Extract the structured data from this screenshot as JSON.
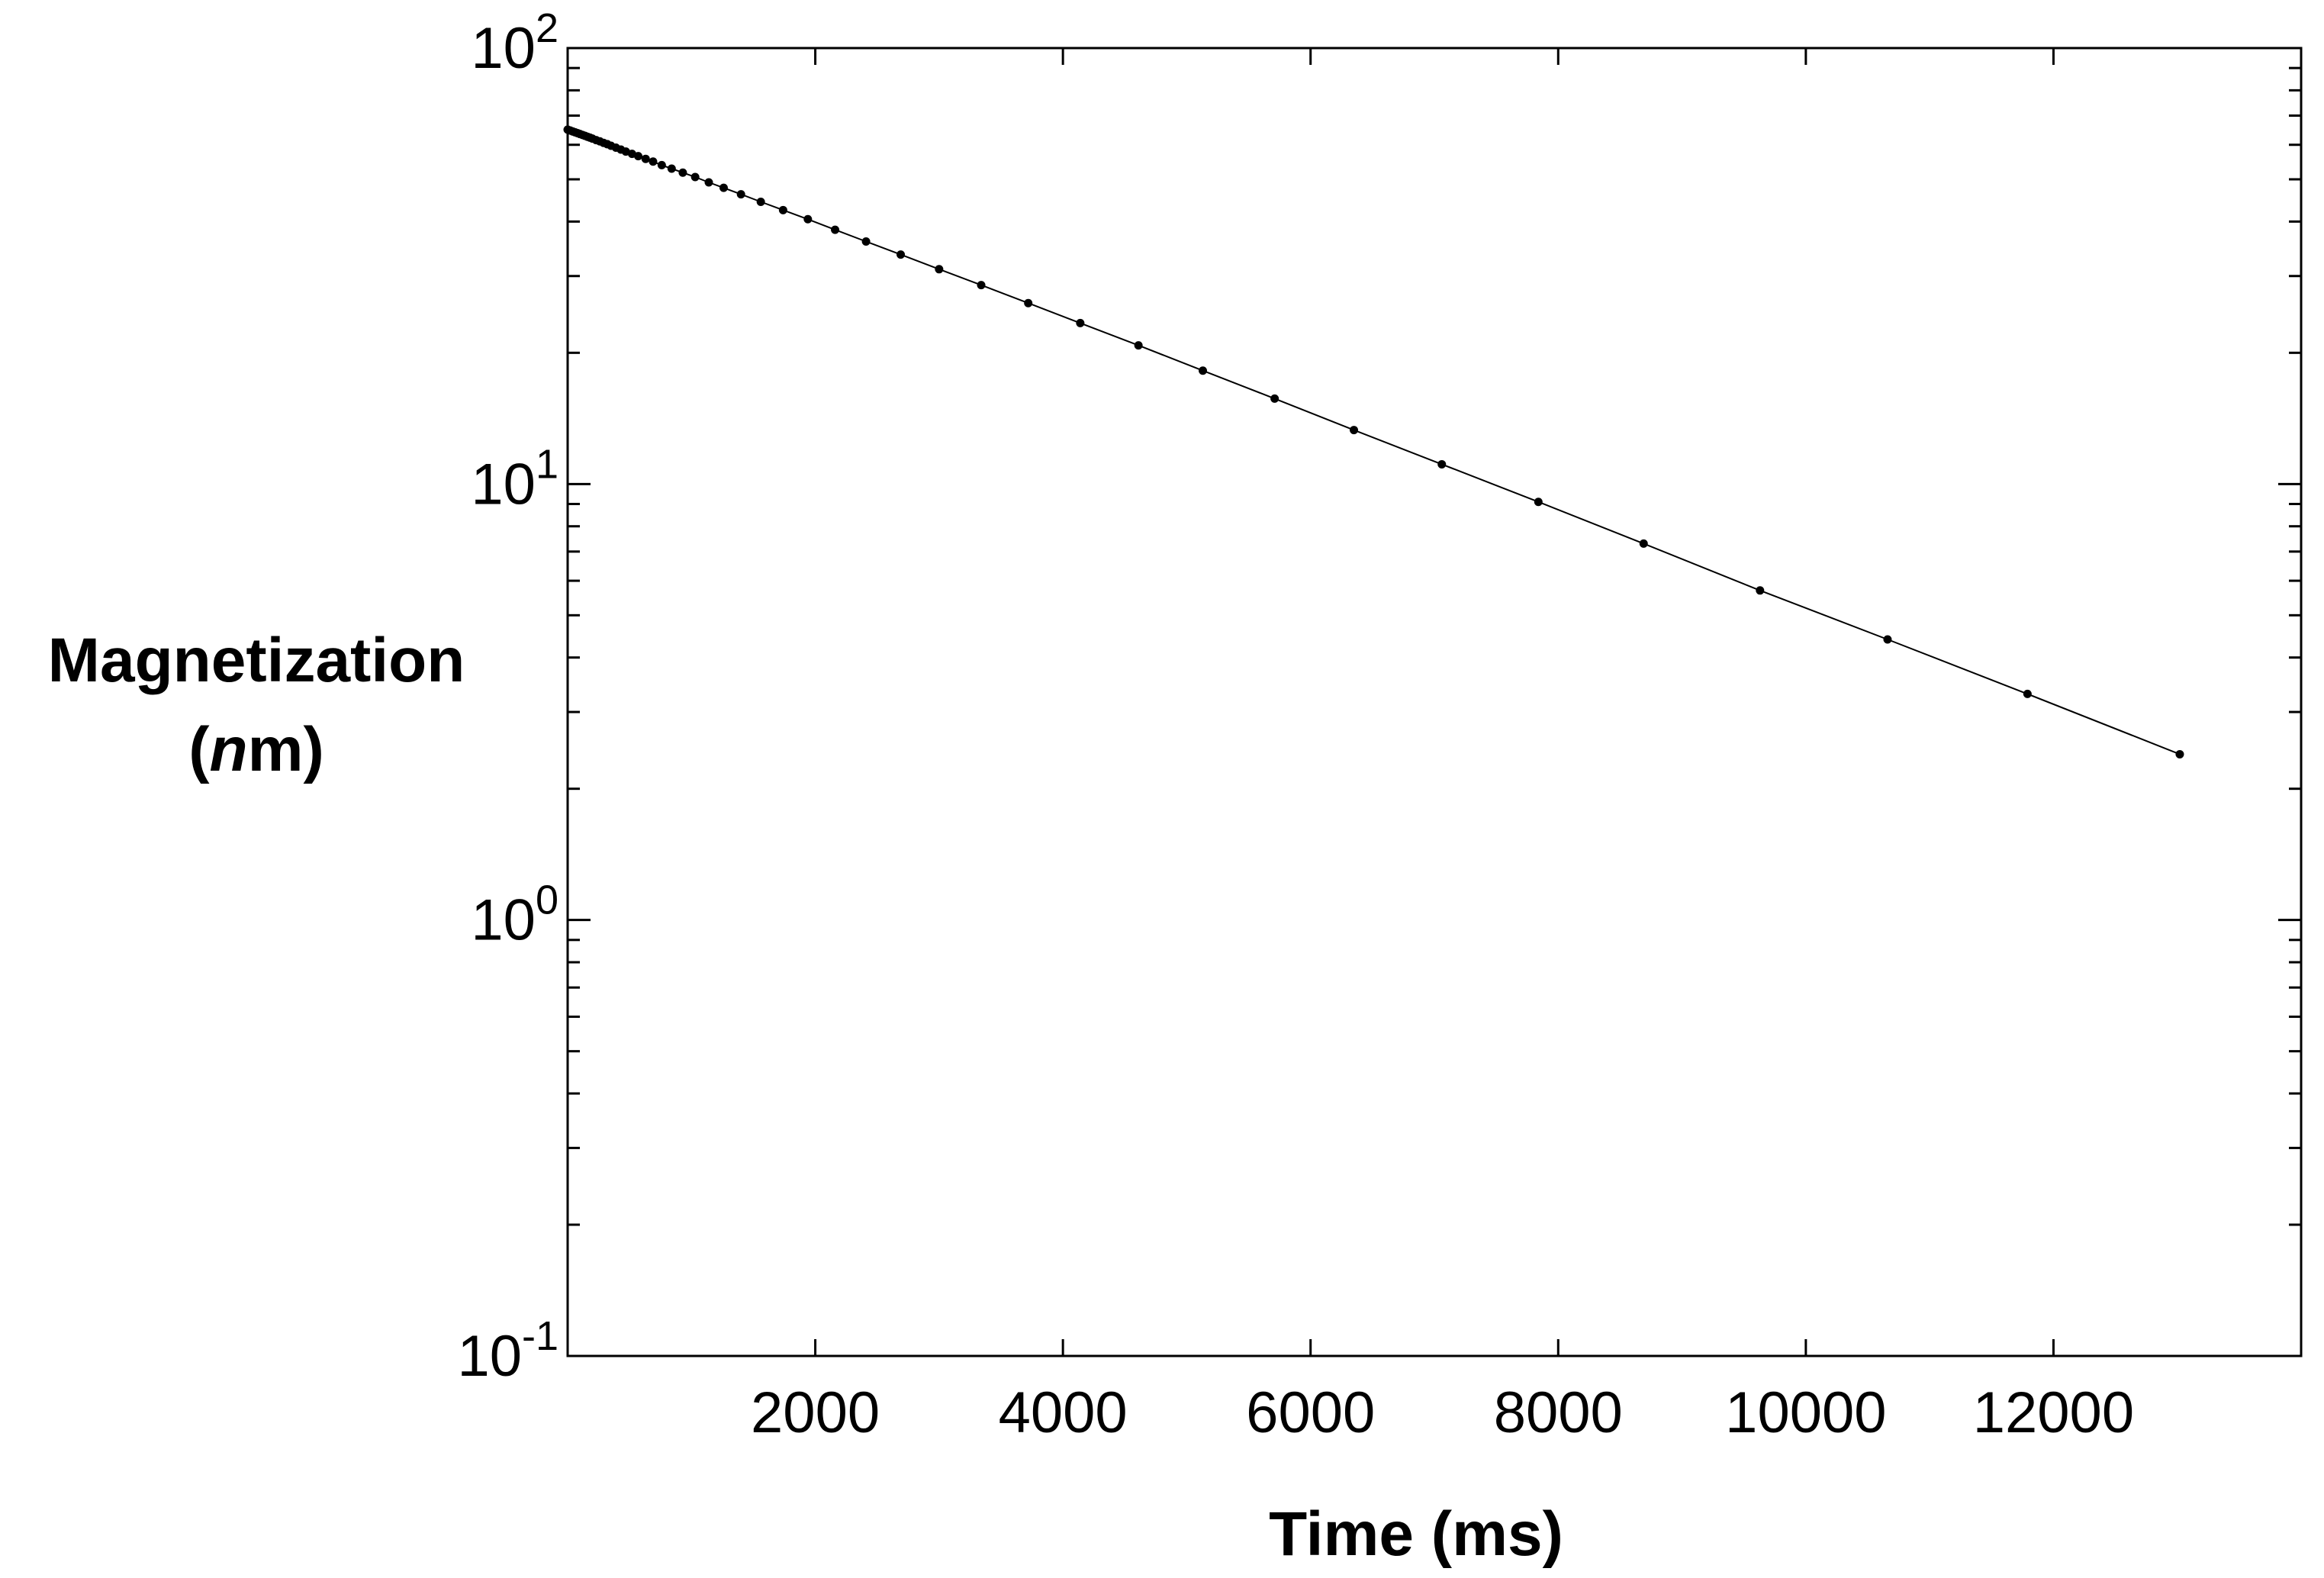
{
  "chart_data": {
    "type": "scatter",
    "xlabel": "Time (ms)",
    "ylabel_line1": "Magnetization",
    "ylabel_paren_open": "(",
    "ylabel_italic": "n",
    "ylabel_rest": "m)",
    "xlim": [
      0,
      14000
    ],
    "ylim": [
      0.1,
      100
    ],
    "y_scale": "log",
    "grid": false,
    "x_ticks": [
      2000,
      4000,
      6000,
      8000,
      10000,
      12000
    ],
    "x_tick_labels": [
      "2000",
      "4000",
      "6000",
      "8000",
      "10000",
      "12000"
    ],
    "y_ticks": [
      {
        "value": 100,
        "base": "10",
        "exp": "2"
      },
      {
        "value": 10,
        "base": "10",
        "exp": "1"
      },
      {
        "value": 1,
        "base": "10",
        "exp": "0"
      },
      {
        "value": 0.1,
        "base": "10",
        "exp": "-1"
      }
    ],
    "series": [
      {
        "style": "points-with-line",
        "color": "#000000",
        "points": [
          [
            0,
            65
          ],
          [
            20,
            64.7
          ],
          [
            40,
            64.4
          ],
          [
            60,
            64.1
          ],
          [
            80,
            63.8
          ],
          [
            100,
            63.5
          ],
          [
            120,
            63.2
          ],
          [
            140,
            62.9
          ],
          [
            160,
            62.6
          ],
          [
            180,
            62.3
          ],
          [
            200,
            62.0
          ],
          [
            230,
            61.5
          ],
          [
            260,
            61.1
          ],
          [
            290,
            60.6
          ],
          [
            320,
            60.2
          ],
          [
            350,
            59.7
          ],
          [
            390,
            59.1
          ],
          [
            430,
            58.5
          ],
          [
            470,
            57.9
          ],
          [
            520,
            57.2
          ],
          [
            570,
            56.5
          ],
          [
            630,
            55.7
          ],
          [
            690,
            54.9
          ],
          [
            760,
            53.9
          ],
          [
            840,
            52.9
          ],
          [
            930,
            51.8
          ],
          [
            1030,
            50.6
          ],
          [
            1140,
            49.2
          ],
          [
            1260,
            47.8
          ],
          [
            1400,
            46.2
          ],
          [
            1560,
            44.4
          ],
          [
            1740,
            42.5
          ],
          [
            1940,
            40.5
          ],
          [
            2160,
            38.3
          ],
          [
            2410,
            36.0
          ],
          [
            2690,
            33.6
          ],
          [
            3000,
            31.1
          ],
          [
            3340,
            28.6
          ],
          [
            3720,
            26.0
          ],
          [
            4140,
            23.4
          ],
          [
            4610,
            20.8
          ],
          [
            5130,
            18.2
          ],
          [
            5710,
            15.7
          ],
          [
            6350,
            13.3
          ],
          [
            7060,
            11.1
          ],
          [
            7840,
            9.1
          ],
          [
            8690,
            7.3
          ],
          [
            9630,
            5.7
          ],
          [
            10660,
            4.4
          ],
          [
            11790,
            3.3
          ],
          [
            13020,
            2.4
          ]
        ]
      }
    ]
  }
}
